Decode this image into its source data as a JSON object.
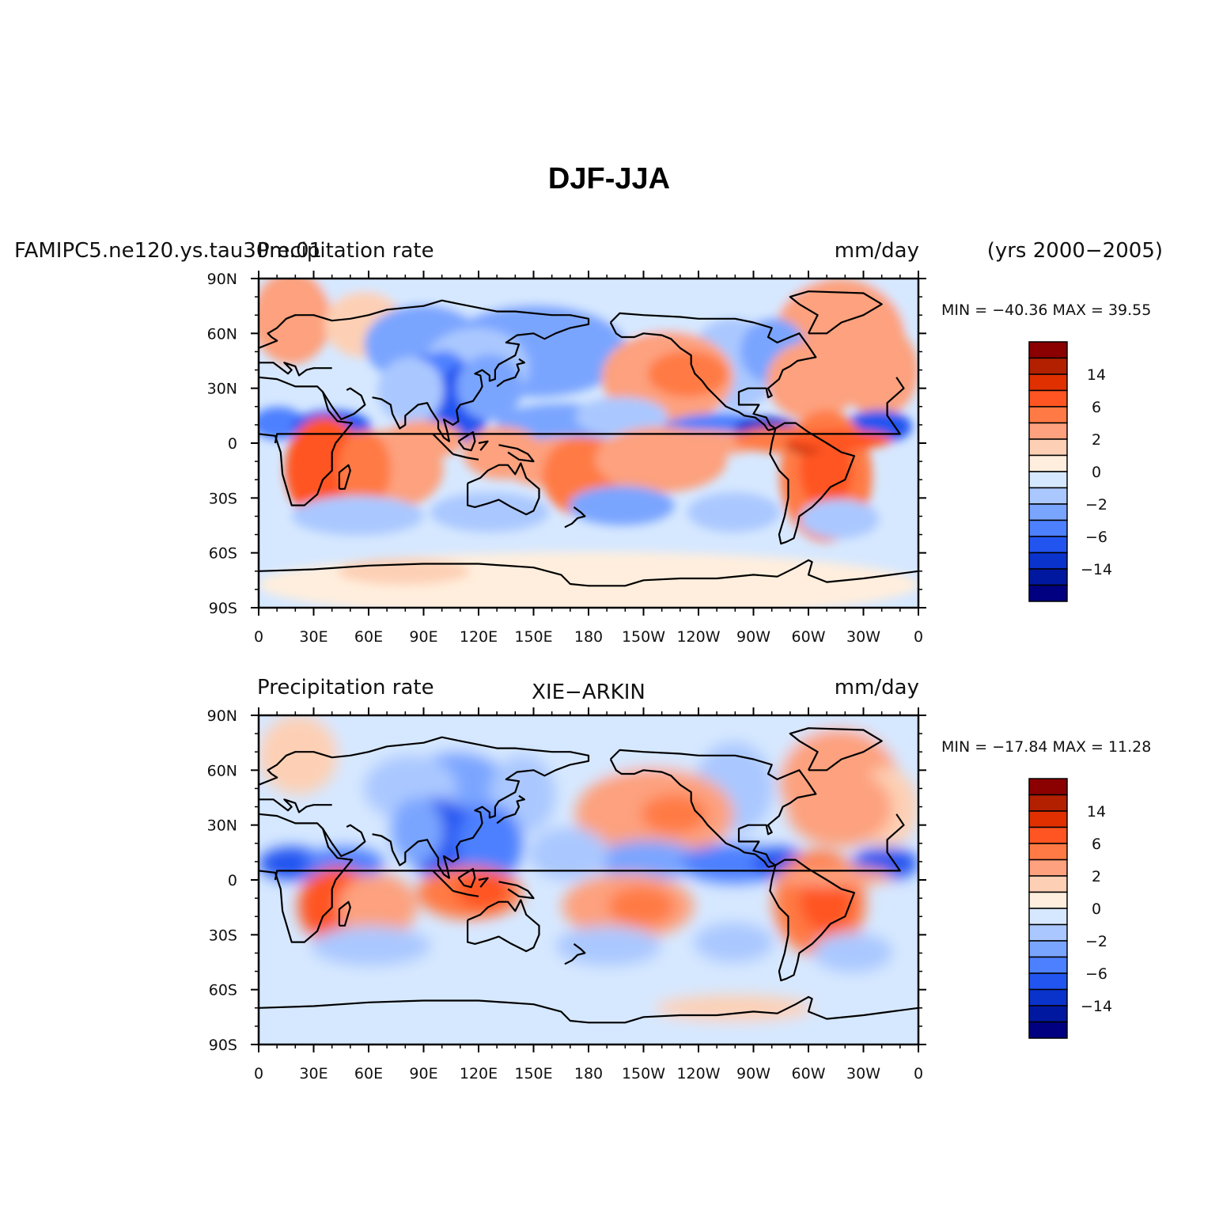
{
  "title": "DJF-JJA",
  "panels": [
    {
      "case_label": "FAMIPC5.ne120.ys.tau30m.01",
      "variable_label": "Precipitation rate",
      "units_label": "mm/day",
      "center_label": "",
      "years_label": "(yrs 2000−2005)",
      "minmax_label": "MIN = −40.36  MAX =  39.55"
    },
    {
      "case_label": "",
      "variable_label": "Precipitation rate",
      "units_label": "mm/day",
      "center_label": "XIE−ARKIN",
      "years_label": "",
      "minmax_label": "MIN = −17.84  MAX =  11.28"
    }
  ],
  "axes": {
    "lat_labels": [
      "90N",
      "60N",
      "30N",
      "0",
      "30S",
      "60S",
      "90S"
    ],
    "lon_labels": [
      "0",
      "30E",
      "60E",
      "90E",
      "120E",
      "150E",
      "180",
      "150W",
      "120W",
      "90W",
      "60W",
      "30W",
      "0"
    ]
  },
  "colorbar": {
    "colors": [
      "#8b0000",
      "#b22000",
      "#e03000",
      "#ff5522",
      "#ff7a45",
      "#fda17e",
      "#fdd0b5",
      "#ffeedd",
      "#d6e8ff",
      "#aac8ff",
      "#7aa5ff",
      "#4d80ff",
      "#2255f0",
      "#0a33cc",
      "#0018a0",
      "#000080"
    ],
    "labels": [
      "14",
      "6",
      "2",
      "0",
      "−2",
      "−6",
      "−14"
    ]
  },
  "chart_data": {
    "type": "heatmap",
    "title": "DJF-JJA",
    "variable": "Precipitation rate",
    "units": "mm/day",
    "panels": [
      {
        "name": "FAMIPC5.ne120.ys.tau30m.01",
        "years": "2000-2005",
        "min": -40.36,
        "max": 39.55
      },
      {
        "name": "XIE-ARKIN",
        "min": -17.84,
        "max": 11.28
      }
    ],
    "lat_range": [
      -90,
      90
    ],
    "lon_range": [
      0,
      360
    ],
    "contour_levels": [
      -14,
      -6,
      -2,
      0,
      2,
      6,
      14
    ]
  }
}
